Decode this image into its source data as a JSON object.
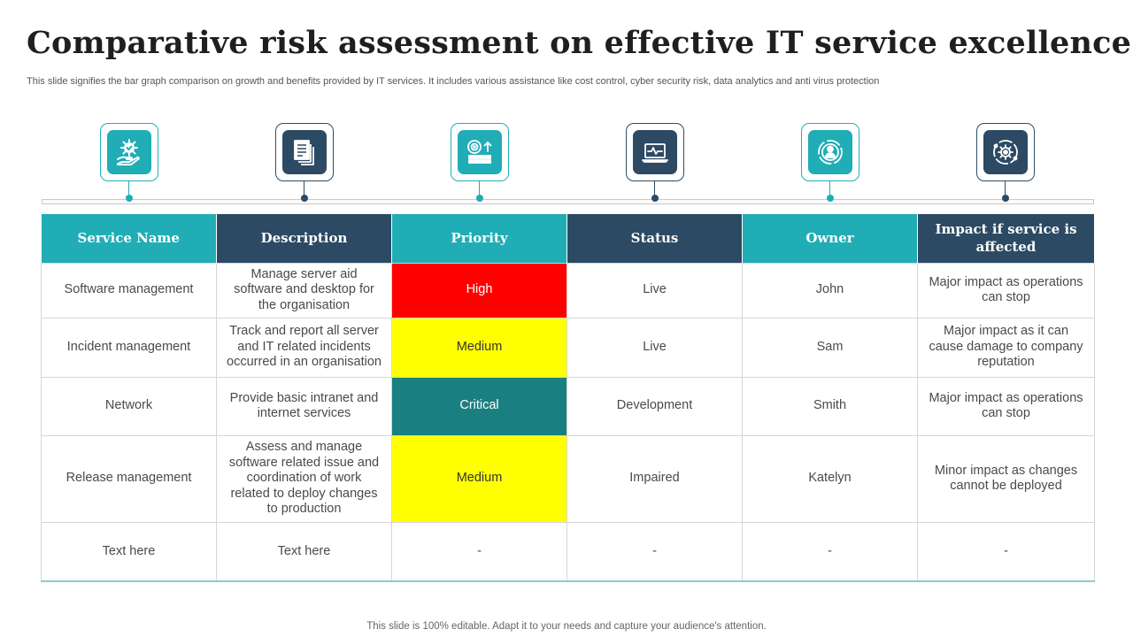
{
  "slide": {
    "title": "Comparative risk assessment on effective IT service excellence",
    "subtitle": "This slide signifies the bar graph comparison on growth and benefits provided by IT services. It includes various assistance like cost control, cyber security risk, data analytics and anti virus protection",
    "footer": "This slide is 100% editable. Adapt it to your needs and capture your audience's attention."
  },
  "icons": [
    {
      "name": "hand-gear-check-icon",
      "color": "#20adb5"
    },
    {
      "name": "documents-icon",
      "color": "#2c4a63"
    },
    {
      "name": "target-chart-icon",
      "color": "#20adb5"
    },
    {
      "name": "laptop-pulse-icon",
      "color": "#2c4a63"
    },
    {
      "name": "user-circle-icon",
      "color": "#20adb5"
    },
    {
      "name": "gear-orbit-icon",
      "color": "#2c4a63"
    }
  ],
  "table": {
    "headers": [
      "Service Name",
      "Description",
      "Priority",
      "Status",
      "Owner",
      "Impact if service is affected"
    ],
    "rows": [
      {
        "service": "Software management",
        "description": "Manage server aid software and desktop for the organisation",
        "priority": "High",
        "status": "Live",
        "owner": "John",
        "impact": "Major impact as operations can stop"
      },
      {
        "service": "Incident management",
        "description": "Track and report all server and IT related incidents occurred in an organisation",
        "priority": "Medium",
        "status": "Live",
        "owner": "Sam",
        "impact": "Major impact as it can cause damage to company reputation"
      },
      {
        "service": "Network",
        "description": "Provide basic intranet and internet services",
        "priority": "Critical",
        "status": "Development",
        "owner": "Smith",
        "impact": "Major impact as operations can stop"
      },
      {
        "service": "Release management",
        "description": "Assess and manage software related issue and coordination of work related to deploy changes to production",
        "priority": "Medium",
        "status": "Impaired",
        "owner": "Katelyn",
        "impact": "Minor impact as changes cannot be deployed"
      },
      {
        "service": "Text here",
        "description": "Text here",
        "priority": "-",
        "status": "-",
        "owner": "-",
        "impact": "-"
      }
    ]
  },
  "colors": {
    "teal": "#20adb5",
    "navy": "#2c4a63",
    "high": "#ff0000",
    "medium": "#ffff00",
    "critical": "#197f81"
  }
}
